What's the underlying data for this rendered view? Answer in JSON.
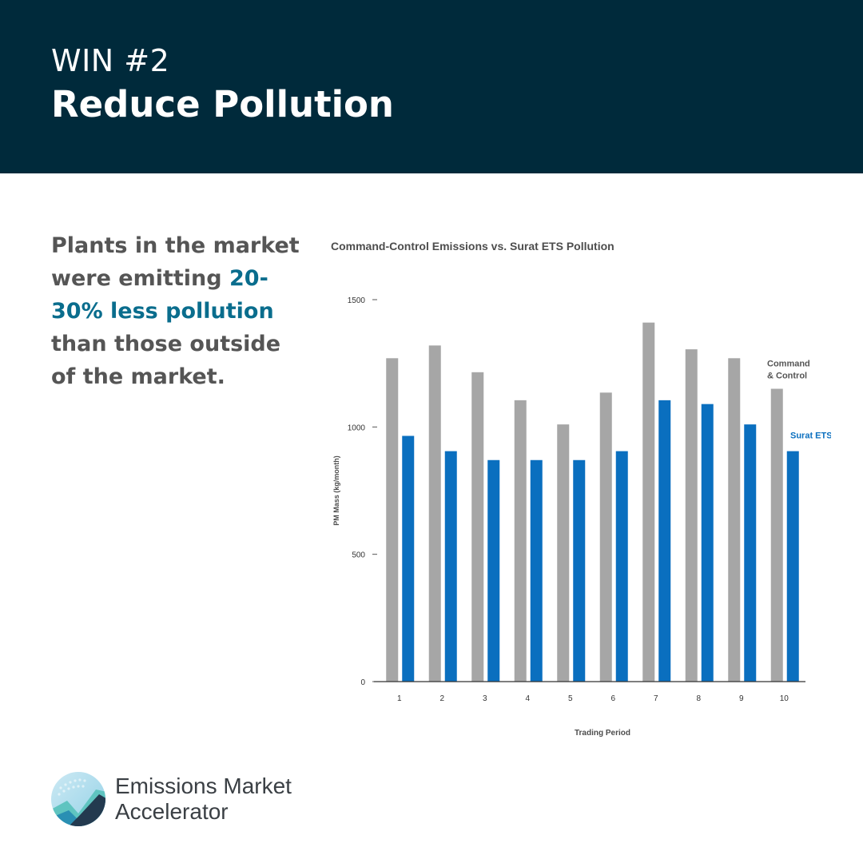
{
  "header": {
    "eyebrow": "WIN #2",
    "title": "Reduce Pollution",
    "background_color": "#002a3b"
  },
  "lede": {
    "before": "Plants in the market were emitting ",
    "highlight": "20-30% less pollution",
    "after": " than those outside of the market.",
    "highlight_color": "#0a6d8d"
  },
  "chart_data": {
    "type": "bar",
    "title": "Command-Control Emissions vs. Surat ETS Pollution",
    "xlabel": "Trading Period",
    "ylabel": "PM Mass (kg/month)",
    "ylim": [
      0,
      1500
    ],
    "yticks": [
      0,
      500,
      1000,
      1500
    ],
    "categories": [
      "1",
      "2",
      "3",
      "4",
      "5",
      "6",
      "7",
      "8",
      "9",
      "10"
    ],
    "legend_placement": "right",
    "series": [
      {
        "name": "Command & Control",
        "legend_lines": [
          "Command",
          "& Control"
        ],
        "color": "#a6a6a6",
        "values": [
          1270,
          1320,
          1215,
          1105,
          1010,
          1135,
          1410,
          1305,
          1270,
          1150
        ]
      },
      {
        "name": "Surat ETS",
        "legend_lines": [
          "Surat ETS"
        ],
        "color": "#0a6fbf",
        "values": [
          965,
          905,
          870,
          870,
          870,
          905,
          1105,
          1090,
          1010,
          905
        ]
      }
    ]
  },
  "logo": {
    "line1": "Emissions Market",
    "line2": "Accelerator"
  }
}
